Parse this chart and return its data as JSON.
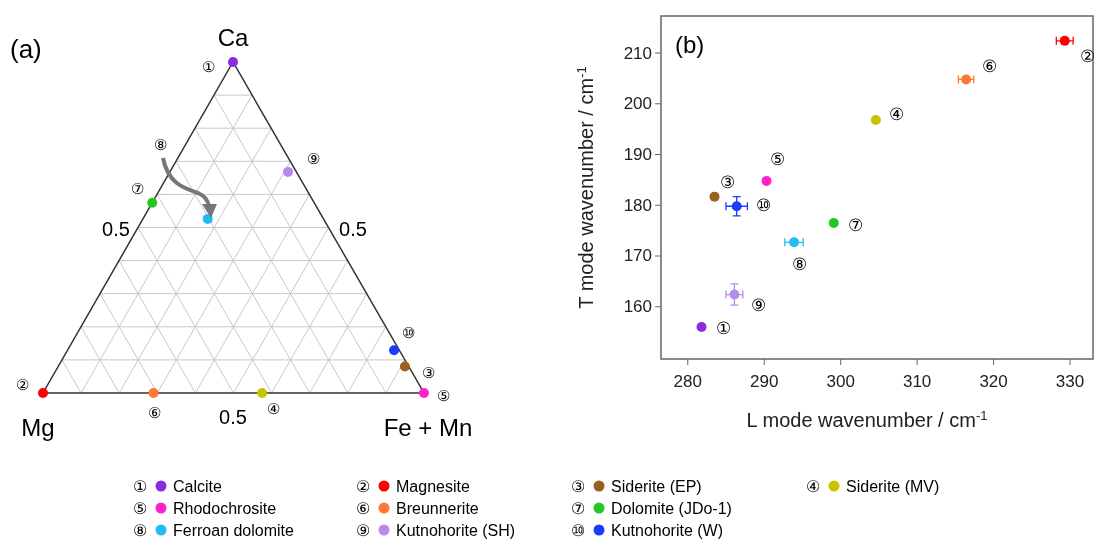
{
  "chart_data": [
    {
      "type": "other",
      "annotations": [
        "(a)",
        "Ca",
        "Mg",
        "Fe + Mn",
        "0.5",
        "0.5",
        "0.5",
        "①",
        "②",
        "③",
        "④",
        "⑤",
        "⑥",
        "⑦",
        "⑧",
        "⑨",
        "⑩"
      ]
    },
    {
      "type": "scatter",
      "xlabel": "L mode wavenumber  / cm$^{-1}$",
      "ylabel": "T mode wavenumber  / cm$^{-1}$",
      "xlim": [
        276.5,
        333
      ],
      "ylim": [
        149.7,
        217.3
      ],
      "xticks": [
        280,
        290,
        300,
        310,
        320,
        330
      ],
      "yticks": [
        160,
        170,
        180,
        190,
        200,
        210
      ],
      "marker": "circle",
      "legend": "bottom",
      "grid": false,
      "series": [
        {
          "name": "Calcite",
          "color": "#8a2be2",
          "x": [
            281.8
          ],
          "values": [
            156.0
          ]
        },
        {
          "name": "Magnesite",
          "color": "#ff0000",
          "x": [
            329.3
          ],
          "values": [
            212.4
          ],
          "xerrors": [
            1.1
          ]
        },
        {
          "name": "Siderite (EP)",
          "color": "#9a5f1e",
          "x": [
            283.5
          ],
          "values": [
            181.7
          ]
        },
        {
          "name": "Siderite (MV)",
          "color": "#c8c400",
          "x": [
            304.6
          ],
          "values": [
            196.8
          ]
        },
        {
          "name": "Rhodochrosite",
          "color": "#ff22cc",
          "x": [
            290.3
          ],
          "values": [
            184.8
          ]
        },
        {
          "name": "Breunnerite",
          "color": "#ff7733",
          "x": [
            316.4
          ],
          "values": [
            204.8
          ],
          "xerrors": [
            1.0
          ]
        },
        {
          "name": "Dolomite (JDo-1)",
          "color": "#22c822",
          "x": [
            299.1
          ],
          "values": [
            176.5
          ]
        },
        {
          "name": "Ferroan dolomite",
          "color": "#22bbf5",
          "x": [
            293.9
          ],
          "values": [
            172.7
          ],
          "xerrors": [
            1.2
          ]
        },
        {
          "name": "Kutnohorite (SH)",
          "color": "#b48cf0",
          "x": [
            286.1
          ],
          "values": [
            162.4
          ],
          "xerrors": [
            1.1
          ],
          "errors": [
            2.1
          ]
        },
        {
          "name": "Kutnohorite (W)",
          "color": "#1a3cff",
          "x": [
            286.4
          ],
          "values": [
            179.8
          ],
          "xerrors": [
            1.4
          ],
          "errors": [
            1.9
          ]
        }
      ],
      "annotations": [
        "(b)",
        "①",
        "②",
        "③",
        "④",
        "⑤",
        "⑥",
        "⑦",
        "⑧",
        "⑨",
        "⑩",
        "①",
        "②",
        "③",
        "④",
        "⑤",
        "⑥",
        "⑦",
        "⑧",
        "⑨",
        "⑩"
      ]
    }
  ]
}
